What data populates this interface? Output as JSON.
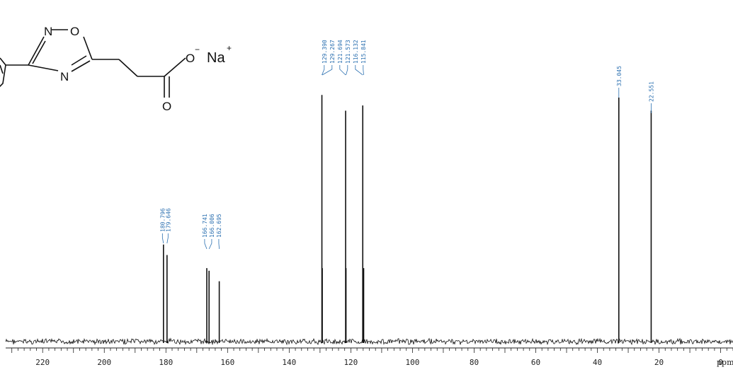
{
  "chart_data": {
    "type": "line",
    "title": "",
    "xlabel": "ppm",
    "ylabel": "",
    "x_reversed": true,
    "xlim": [
      232,
      -4
    ],
    "x_ticks": [
      220,
      200,
      180,
      160,
      140,
      120,
      100,
      80,
      60,
      40,
      20,
      0
    ],
    "peaks": [
      {
        "ppm": 180.796,
        "label": "180.796",
        "intensity": 0.37
      },
      {
        "ppm": 179.646,
        "label": "179.646",
        "intensity": 0.33
      },
      {
        "ppm": 166.741,
        "label": "166.741",
        "intensity": 0.28
      },
      {
        "ppm": 166.006,
        "label": "166.006",
        "intensity": 0.27
      },
      {
        "ppm": 162.695,
        "label": "162.695",
        "intensity": 0.23
      },
      {
        "ppm": 129.39,
        "label": "129.390",
        "intensity": 0.94
      },
      {
        "ppm": 129.267,
        "label": "129.267",
        "intensity": 0.28
      },
      {
        "ppm": 121.694,
        "label": "121.694",
        "intensity": 0.88
      },
      {
        "ppm": 121.573,
        "label": "121.573",
        "intensity": 0.28
      },
      {
        "ppm": 116.132,
        "label": "116.132",
        "intensity": 0.9
      },
      {
        "ppm": 115.841,
        "label": "115.841",
        "intensity": 0.28
      },
      {
        "ppm": 33.045,
        "label": "33.045",
        "intensity": 0.93
      },
      {
        "ppm": 22.551,
        "label": "22.551",
        "intensity": 0.88
      }
    ]
  },
  "structure": {
    "atoms": {
      "n_top": "N",
      "o_ring": "O",
      "n_bottom": "N",
      "o_anion": "O",
      "o_carbonyl": "O",
      "sodium": "Na",
      "anion_charge": "−",
      "cation_charge": "+"
    }
  },
  "colors": {
    "label": "#2a6fb0",
    "trace": "#111111",
    "axis": "#222222"
  }
}
